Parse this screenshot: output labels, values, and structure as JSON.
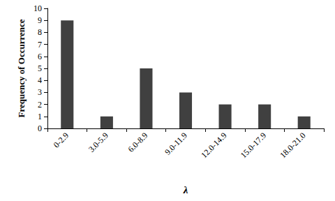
{
  "chart_data": {
    "type": "bar",
    "xlabel": "λ",
    "ylabel": "Frequency of Occurrence",
    "categories": [
      "0-2.9",
      "3.0-5.9",
      "6.0-8.9",
      "9.0-11.9",
      "12.0-14.9",
      "15.0-17.9",
      "18.0-21.0"
    ],
    "values": [
      9,
      1,
      5,
      3,
      2,
      2,
      1
    ],
    "color": "#404040",
    "ylim": [
      0,
      10
    ],
    "yticks": [
      0,
      1,
      2,
      3,
      4,
      5,
      6,
      7,
      8,
      9,
      10
    ],
    "grid": false
  }
}
